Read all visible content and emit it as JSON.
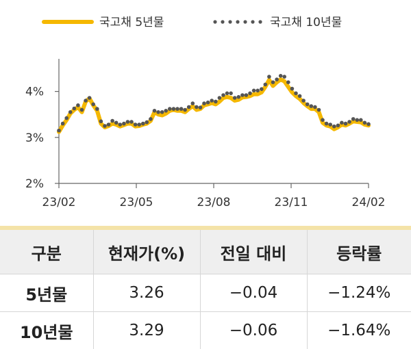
{
  "chart_data": {
    "type": "line",
    "series": [
      {
        "name": "국고채 5년물",
        "color": "#f5b800",
        "style": "solid",
        "values": [
          3.12,
          3.26,
          3.38,
          3.52,
          3.6,
          3.66,
          3.55,
          3.78,
          3.85,
          3.7,
          3.58,
          3.3,
          3.22,
          3.25,
          3.3,
          3.28,
          3.24,
          3.27,
          3.3,
          3.3,
          3.24,
          3.25,
          3.28,
          3.3,
          3.36,
          3.55,
          3.5,
          3.48,
          3.52,
          3.58,
          3.6,
          3.58,
          3.58,
          3.55,
          3.62,
          3.68,
          3.6,
          3.62,
          3.7,
          3.72,
          3.75,
          3.72,
          3.78,
          3.86,
          3.88,
          3.86,
          3.8,
          3.82,
          3.87,
          3.88,
          3.9,
          3.94,
          3.94,
          3.98,
          4.1,
          4.25,
          4.12,
          4.2,
          4.26,
          4.22,
          4.1,
          3.98,
          3.9,
          3.84,
          3.75,
          3.68,
          3.62,
          3.62,
          3.55,
          3.32,
          3.26,
          3.24,
          3.18,
          3.22,
          3.28,
          3.26,
          3.3,
          3.35,
          3.34,
          3.33,
          3.28,
          3.26
        ]
      },
      {
        "name": "국고채 10년물",
        "color": "#555555",
        "style": "dotted",
        "values": [
          3.15,
          3.3,
          3.42,
          3.55,
          3.63,
          3.7,
          3.6,
          3.8,
          3.86,
          3.72,
          3.62,
          3.35,
          3.25,
          3.28,
          3.36,
          3.32,
          3.28,
          3.3,
          3.34,
          3.34,
          3.28,
          3.28,
          3.3,
          3.33,
          3.4,
          3.58,
          3.55,
          3.55,
          3.58,
          3.62,
          3.62,
          3.62,
          3.62,
          3.6,
          3.66,
          3.74,
          3.66,
          3.65,
          3.74,
          3.76,
          3.8,
          3.78,
          3.86,
          3.92,
          3.96,
          3.96,
          3.86,
          3.88,
          3.92,
          3.92,
          3.96,
          4.02,
          4.02,
          4.05,
          4.15,
          4.32,
          4.2,
          4.26,
          4.34,
          4.32,
          4.2,
          4.06,
          3.96,
          3.9,
          3.8,
          3.72,
          3.68,
          3.66,
          3.6,
          3.38,
          3.3,
          3.28,
          3.24,
          3.26,
          3.32,
          3.3,
          3.34,
          3.4,
          3.38,
          3.38,
          3.32,
          3.29
        ]
      }
    ],
    "x_ticks": [
      "23/02",
      "23/05",
      "23/08",
      "23/11",
      "24/02"
    ],
    "y_ticks": [
      "2%",
      "3%",
      "4%"
    ],
    "ylim": [
      2,
      4.5
    ],
    "legend_position": "top",
    "grid": false
  },
  "table": {
    "headers": [
      "구분",
      "현재가(%)",
      "전일 대비",
      "등락률"
    ],
    "rows": [
      [
        "5년물",
        "3.26",
        "−0.04",
        "−1.24%"
      ],
      [
        "10년물",
        "3.29",
        "−0.06",
        "−1.64%"
      ]
    ]
  }
}
